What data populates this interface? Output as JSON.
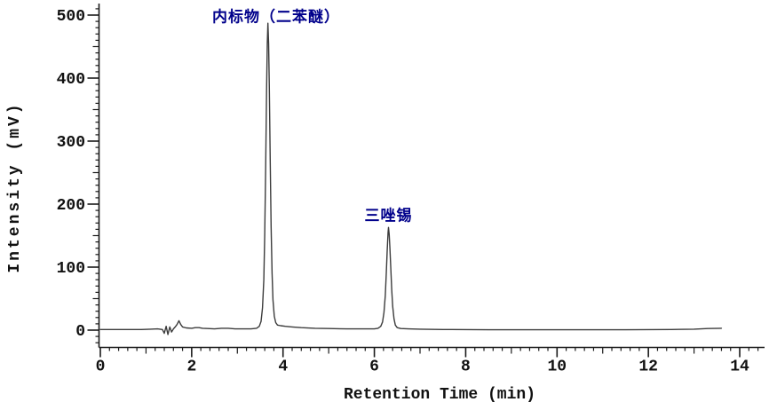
{
  "chart_data": {
    "type": "line",
    "title": "",
    "xlabel": "Retention Time (min)",
    "ylabel": "Intensity (mV)",
    "xlim": [
      0,
      14.5
    ],
    "ylim": [
      -27,
      518
    ],
    "grid": false,
    "legend": "none",
    "x_major_ticks": [
      0,
      2,
      4,
      6,
      8,
      10,
      12,
      14
    ],
    "x_medium_tick_step": 1,
    "x_minor_tick_step": 0.2,
    "x_minor_tick_max": 14.4,
    "y_major_ticks": [
      0,
      100,
      200,
      300,
      400,
      500
    ],
    "y_medium_tick_step": 50,
    "y_minor_tick_step": 10,
    "y_minor_tick_min": -20,
    "y_minor_tick_max": 510,
    "colors": {
      "trace": "#3c3c3c",
      "axis": "#1a1a1a",
      "annotation": "#00008b",
      "background": "#ffffff"
    },
    "peaks": [
      {
        "label": "内标物（二苯醚）",
        "retention_time_min": 3.67,
        "height_mV": 487
      },
      {
        "label": "三唑锡",
        "retention_time_min": 6.31,
        "height_mV": 163
      }
    ],
    "annotations": [
      {
        "text": "内标物（二苯醚）",
        "t": 3.85,
        "mv": 500
      },
      {
        "text": "三唑锡",
        "t": 6.31,
        "mv": 185
      }
    ],
    "trace": [
      [
        0.0,
        1
      ],
      [
        0.3,
        1
      ],
      [
        0.6,
        1
      ],
      [
        0.9,
        1
      ],
      [
        1.1,
        1.5
      ],
      [
        1.25,
        2
      ],
      [
        1.36,
        1
      ],
      [
        1.4,
        -5
      ],
      [
        1.44,
        6
      ],
      [
        1.48,
        -7
      ],
      [
        1.52,
        5
      ],
      [
        1.56,
        -3
      ],
      [
        1.6,
        2
      ],
      [
        1.64,
        5
      ],
      [
        1.68,
        9
      ],
      [
        1.72,
        15
      ],
      [
        1.76,
        9
      ],
      [
        1.8,
        5
      ],
      [
        1.88,
        3.5
      ],
      [
        2.0,
        3
      ],
      [
        2.08,
        4
      ],
      [
        2.16,
        4
      ],
      [
        2.24,
        3
      ],
      [
        2.35,
        2.5
      ],
      [
        2.5,
        2
      ],
      [
        2.65,
        3
      ],
      [
        2.8,
        3
      ],
      [
        2.95,
        2
      ],
      [
        3.1,
        2
      ],
      [
        3.3,
        2
      ],
      [
        3.42,
        3
      ],
      [
        3.48,
        6
      ],
      [
        3.52,
        14
      ],
      [
        3.55,
        35
      ],
      [
        3.58,
        80
      ],
      [
        3.6,
        150
      ],
      [
        3.62,
        260
      ],
      [
        3.64,
        380
      ],
      [
        3.655,
        455
      ],
      [
        3.67,
        487
      ],
      [
        3.685,
        455
      ],
      [
        3.7,
        385
      ],
      [
        3.72,
        270
      ],
      [
        3.74,
        165
      ],
      [
        3.76,
        90
      ],
      [
        3.78,
        48
      ],
      [
        3.81,
        22
      ],
      [
        3.84,
        12
      ],
      [
        3.88,
        8
      ],
      [
        3.95,
        7
      ],
      [
        4.05,
        6
      ],
      [
        4.2,
        5
      ],
      [
        4.4,
        4
      ],
      [
        4.7,
        3
      ],
      [
        5.0,
        2.5
      ],
      [
        5.4,
        2
      ],
      [
        5.8,
        2
      ],
      [
        6.0,
        2
      ],
      [
        6.08,
        3
      ],
      [
        6.14,
        6
      ],
      [
        6.18,
        13
      ],
      [
        6.21,
        28
      ],
      [
        6.24,
        55
      ],
      [
        6.26,
        90
      ],
      [
        6.28,
        125
      ],
      [
        6.3,
        155
      ],
      [
        6.31,
        163
      ],
      [
        6.325,
        152
      ],
      [
        6.34,
        130
      ],
      [
        6.36,
        98
      ],
      [
        6.38,
        65
      ],
      [
        6.4,
        38
      ],
      [
        6.43,
        18
      ],
      [
        6.46,
        8
      ],
      [
        6.5,
        4
      ],
      [
        6.58,
        2.5
      ],
      [
        6.75,
        2
      ],
      [
        7.0,
        1.5
      ],
      [
        7.5,
        1
      ],
      [
        8.5,
        0.5
      ],
      [
        9.5,
        0.5
      ],
      [
        10.5,
        0.5
      ],
      [
        11.5,
        0.5
      ],
      [
        12.5,
        1
      ],
      [
        13.0,
        1.5
      ],
      [
        13.3,
        2.5
      ],
      [
        13.6,
        3
      ]
    ]
  }
}
